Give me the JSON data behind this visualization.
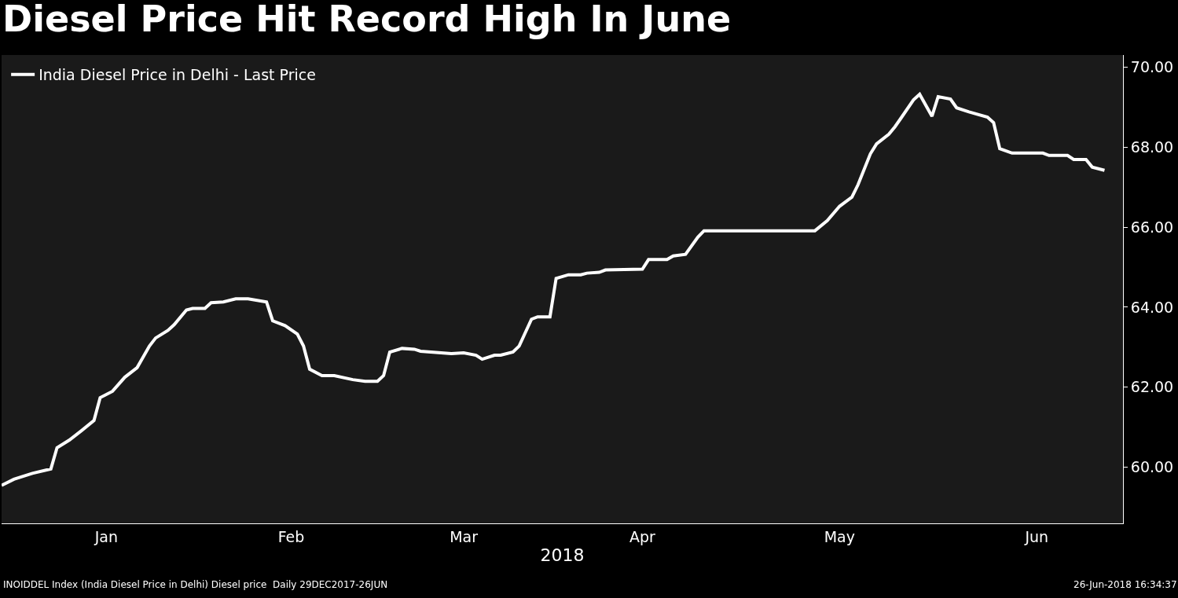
{
  "chart_data": {
    "type": "line",
    "title": "Diesel Price Hit Record High In June",
    "xlabel": "2018",
    "x": [
      "2017-12-29",
      "2017-12-31",
      "2018-01-03",
      "2018-01-06",
      "2018-01-07",
      "2018-01-09",
      "2018-01-11",
      "2018-01-13",
      "2018-01-14",
      "2018-01-16",
      "2018-01-18",
      "2018-01-20",
      "2018-01-22",
      "2018-01-23",
      "2018-01-25",
      "2018-01-26",
      "2018-01-28",
      "2018-01-29",
      "2018-01-31",
      "2018-02-01",
      "2018-02-03",
      "2018-02-05",
      "2018-02-07",
      "2018-02-10",
      "2018-02-11",
      "2018-02-13",
      "2018-02-15",
      "2018-02-16",
      "2018-02-17",
      "2018-02-19",
      "2018-02-21",
      "2018-02-24",
      "2018-02-26",
      "2018-02-28",
      "2018-03-01",
      "2018-03-02",
      "2018-03-04",
      "2018-03-06",
      "2018-03-07",
      "2018-03-12",
      "2018-03-14",
      "2018-03-16",
      "2018-03-17",
      "2018-03-19",
      "2018-03-20",
      "2018-03-22",
      "2018-03-23",
      "2018-03-25",
      "2018-03-26",
      "2018-03-28",
      "2018-03-29",
      "2018-03-31",
      "2018-04-02",
      "2018-04-03",
      "2018-04-05",
      "2018-04-06",
      "2018-04-12",
      "2018-04-13",
      "2018-04-16",
      "2018-04-17",
      "2018-04-19",
      "2018-04-21",
      "2018-04-22",
      "2018-05-10",
      "2018-05-12",
      "2018-05-14",
      "2018-05-16",
      "2018-05-17",
      "2018-05-19",
      "2018-05-20",
      "2018-05-22",
      "2018-05-23",
      "2018-05-24",
      "2018-05-26",
      "2018-05-27",
      "2018-05-29",
      "2018-05-30",
      "2018-06-01",
      "2018-06-02",
      "2018-06-04",
      "2018-06-07",
      "2018-06-08",
      "2018-06-09",
      "2018-06-11",
      "2018-06-16",
      "2018-06-17",
      "2018-06-20",
      "2018-06-21",
      "2018-06-23",
      "2018-06-24",
      "2018-06-26"
    ],
    "series": [
      {
        "name": "India Diesel Price in Delhi - Last Price",
        "color": "#ffffff",
        "values": [
          59.55,
          59.7,
          59.85,
          59.96,
          60.49,
          60.68,
          60.92,
          61.17,
          61.74,
          61.9,
          62.25,
          62.49,
          63.03,
          63.23,
          63.42,
          63.56,
          63.93,
          63.97,
          63.97,
          64.11,
          64.13,
          64.21,
          64.21,
          64.13,
          63.66,
          63.54,
          63.33,
          63.03,
          62.45,
          62.29,
          62.29,
          62.19,
          62.15,
          62.15,
          62.29,
          62.88,
          62.97,
          62.95,
          62.9,
          62.84,
          62.86,
          62.8,
          62.7,
          62.8,
          62.8,
          62.88,
          63.03,
          63.7,
          63.76,
          63.76,
          64.72,
          64.81,
          64.81,
          64.85,
          64.87,
          64.93,
          64.95,
          65.19,
          65.19,
          65.28,
          65.32,
          65.75,
          65.91,
          65.91,
          66.16,
          66.52,
          66.75,
          67.06,
          67.83,
          68.08,
          68.32,
          68.51,
          68.73,
          69.18,
          69.32,
          68.77,
          69.26,
          69.2,
          68.98,
          68.88,
          68.75,
          68.61,
          67.96,
          67.85,
          67.85,
          67.79,
          67.79,
          67.69,
          67.69,
          67.5,
          67.42
        ]
      }
    ],
    "xlim": [
      "2017-12-29",
      "2018-06-29"
    ],
    "xticks": [
      {
        "value": "2018-01-15",
        "label": "Jan"
      },
      {
        "value": "2018-02-14",
        "label": "Feb"
      },
      {
        "value": "2018-03-14",
        "label": "Mar"
      },
      {
        "value": "2018-04-12",
        "label": "Apr"
      },
      {
        "value": "2018-05-14",
        "label": "May"
      },
      {
        "value": "2018-06-15",
        "label": "Jun"
      }
    ],
    "ylim": [
      58.6,
      70.3
    ],
    "yticks": [
      {
        "value": 60,
        "label": "60.00"
      },
      {
        "value": 62,
        "label": "62.00"
      },
      {
        "value": 64,
        "label": "64.00"
      },
      {
        "value": 66,
        "label": "66.00"
      },
      {
        "value": 68,
        "label": "68.00"
      },
      {
        "value": 70,
        "label": "70.00"
      }
    ],
    "grid": false,
    "legend": "top left",
    "marker": "none",
    "line_style": "solid",
    "annotations": [
      "INOIDDEL Index (India Diesel Price in Delhi) Diesel price  Daily 29DEC2017-26JUN",
      "26-Jun-2018 16:34:37"
    ]
  }
}
